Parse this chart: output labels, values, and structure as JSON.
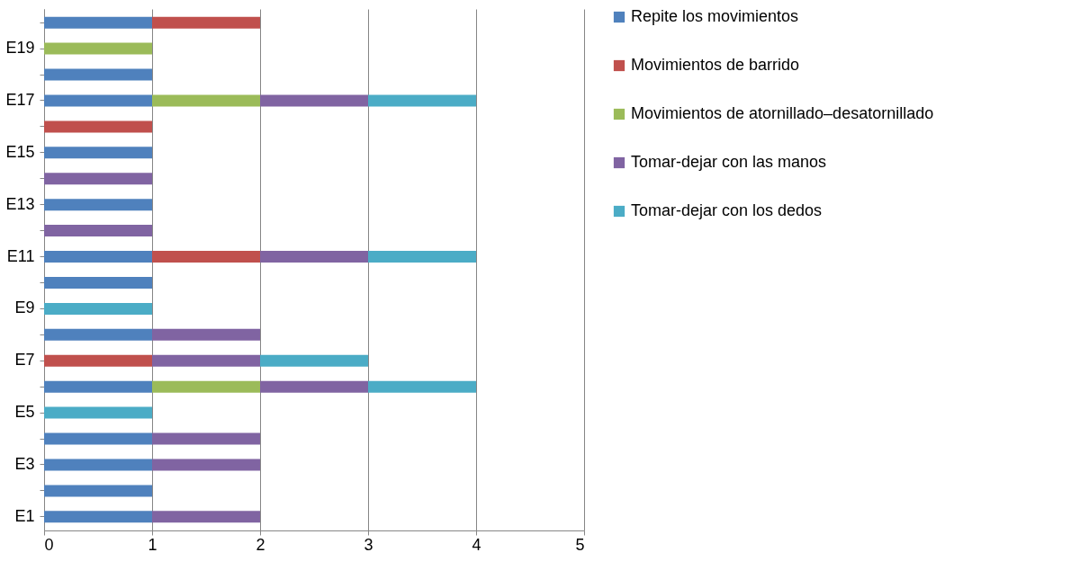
{
  "chart_data": {
    "type": "bar",
    "orientation": "horizontal",
    "stacked": true,
    "categories": [
      null,
      "E19",
      null,
      "E17",
      null,
      "E15",
      null,
      "E13",
      null,
      "E11",
      null,
      "E9",
      null,
      "E7",
      null,
      "E5",
      null,
      "E3",
      null,
      "E1"
    ],
    "series": [
      {
        "name": "Repite los movimientos",
        "color": "#4f81bd",
        "values": [
          1,
          null,
          1,
          1,
          null,
          1,
          null,
          1,
          null,
          1,
          1,
          null,
          1,
          null,
          1,
          null,
          1,
          1,
          1,
          1
        ]
      },
      {
        "name": "Movimientos de barrido",
        "color": "#c0504d",
        "values": [
          1,
          null,
          null,
          null,
          1,
          null,
          null,
          null,
          null,
          1,
          null,
          null,
          null,
          1,
          null,
          null,
          null,
          null,
          null,
          null
        ]
      },
      {
        "name": "Movimientos de atornillado–desatornillado",
        "color": "#9bbb59",
        "values": [
          null,
          1,
          null,
          1,
          null,
          null,
          null,
          null,
          null,
          null,
          null,
          null,
          null,
          null,
          1,
          null,
          null,
          null,
          null,
          null
        ]
      },
      {
        "name": "Tomar-dejar con las manos",
        "color": "#8064a2",
        "values": [
          null,
          null,
          null,
          1,
          null,
          null,
          1,
          null,
          1,
          1,
          null,
          null,
          1,
          1,
          1,
          null,
          1,
          1,
          null,
          1
        ]
      },
      {
        "name": "Tomar-dejar con los dedos",
        "color": "#4bacc6",
        "values": [
          null,
          null,
          null,
          1,
          null,
          null,
          null,
          null,
          null,
          1,
          null,
          1,
          null,
          1,
          1,
          1,
          null,
          null,
          null,
          null
        ]
      }
    ],
    "xlim": [
      0,
      5
    ],
    "xticks": [
      0,
      1,
      2,
      3,
      4,
      5
    ],
    "grid": "x",
    "legend": "right"
  }
}
